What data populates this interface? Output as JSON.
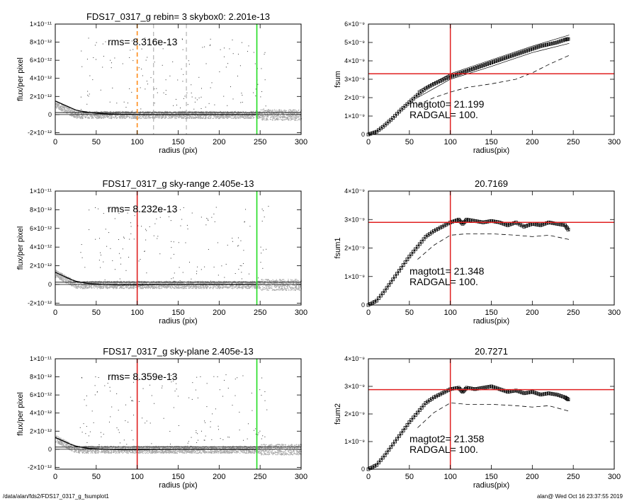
{
  "footer": {
    "path": "/data/alan/fds2/FDS17_0317_g_fsumplot1",
    "stamp": "alan@  Wed Oct 16 23:37:55 2019"
  },
  "colors": {
    "scatter": "#a8a8a8",
    "profile": "#000000",
    "orange": "#ff8c1a",
    "red": "#e02020",
    "green": "#22dd22",
    "dash": "#999999"
  },
  "chart_data": [
    {
      "type": "scatter",
      "title": "FDS17_0317_g rebin= 3    skybox0:  2.201e-13",
      "annotation": "rms= 8.316e-13",
      "xlabel": "radius (pix)",
      "ylabel": "flux/per pixel",
      "xlim": [
        0,
        300
      ],
      "ylim": [
        -2.2e-12,
        1e-11
      ],
      "xticks": [
        "0",
        "50",
        "100",
        "150",
        "200",
        "250",
        "300"
      ],
      "ytick_values": [
        -2e-12,
        0,
        2e-12,
        4e-12,
        6e-12,
        8e-12,
        1e-11
      ],
      "yticks": [
        "-2×10⁻¹²",
        "0",
        "2×10⁻¹²",
        "4×10⁻¹²",
        "6×10⁻¹²",
        "8×10⁻¹²",
        "1×10⁻¹¹"
      ],
      "profile": {
        "x": [
          0,
          5,
          10,
          15,
          20,
          25,
          30,
          40,
          50,
          60,
          70,
          80,
          100,
          120,
          150,
          200,
          245
        ],
        "y": [
          1.5e-12,
          1.3e-12,
          1.1e-12,
          9e-13,
          7e-13,
          5e-13,
          4e-13,
          2.5e-13,
          1.5e-13,
          1e-13,
          6e-14,
          3e-14,
          1e-14,
          0,
          0,
          0,
          0
        ]
      },
      "vlines": [
        {
          "x": 100,
          "color": "orange",
          "style": "dashed"
        },
        {
          "x": 120,
          "color": "dash",
          "style": "dashed"
        },
        {
          "x": 160,
          "color": "dash",
          "style": "dashed"
        },
        {
          "x": 246,
          "color": "green",
          "style": "solid"
        }
      ],
      "hlines": [
        0,
        2.2e-13
      ]
    },
    {
      "type": "line",
      "title": "",
      "annotation": [
        "magtot0=  21.199",
        "RADGAL=    100."
      ],
      "xlabel": "radius(pix)",
      "ylabel": "fsum",
      "xlim": [
        0,
        300
      ],
      "ylim": [
        0,
        6e-09
      ],
      "xticks": [
        "0",
        "50",
        "100",
        "150",
        "200",
        "250",
        "300"
      ],
      "ytick_values": [
        0,
        1e-09,
        2e-09,
        3e-09,
        4e-09,
        5e-09,
        6e-09
      ],
      "yticks": [
        "0",
        "1×10⁻⁹",
        "2×10⁻⁹",
        "3×10⁻⁹",
        "4×10⁻⁹",
        "5×10⁻⁹",
        "6×10⁻⁹"
      ],
      "series": [
        {
          "style": "markers",
          "x": [
            0,
            10,
            20,
            30,
            40,
            50,
            60,
            70,
            80,
            90,
            100,
            110,
            120,
            130,
            140,
            150,
            160,
            170,
            180,
            190,
            200,
            210,
            220,
            230,
            240,
            245
          ],
          "y": [
            0,
            1.5e-10,
            5e-10,
            9e-10,
            1.35e-09,
            1.75e-09,
            2.15e-09,
            2.5e-09,
            2.75e-09,
            2.95e-09,
            3.15e-09,
            3.3e-09,
            3.45e-09,
            3.6e-09,
            3.75e-09,
            3.9e-09,
            4.05e-09,
            4.2e-09,
            4.35e-09,
            4.5e-09,
            4.65e-09,
            4.8e-09,
            4.9e-09,
            5e-09,
            5.15e-09,
            5.2e-09
          ]
        },
        {
          "style": "thin",
          "x": [
            60,
            100,
            150,
            200,
            245
          ],
          "y": [
            2.35e-09,
            3.3e-09,
            4.05e-09,
            4.8e-09,
            5.4e-09
          ]
        },
        {
          "style": "thin",
          "x": [
            60,
            100,
            150,
            200,
            245
          ],
          "y": [
            2e-09,
            3e-09,
            3.7e-09,
            4.45e-09,
            4.95e-09
          ]
        },
        {
          "style": "dashed",
          "x": [
            60,
            80,
            100,
            120,
            150,
            180,
            200,
            220,
            245
          ],
          "y": [
            1.6e-09,
            2e-09,
            2.3e-09,
            2.55e-09,
            2.75e-09,
            3e-09,
            3.35e-09,
            3.8e-09,
            4.3e-09
          ]
        }
      ],
      "vline": 100,
      "hline": 3.3e-09
    },
    {
      "type": "scatter",
      "title": "FDS17_0317_g sky-range  2.405e-13",
      "annotation": "rms= 8.232e-13",
      "xlabel": "radius (pix)",
      "ylabel": "flux/per pixel",
      "xlim": [
        0,
        300
      ],
      "ylim": [
        -2.2e-12,
        1e-11
      ],
      "xticks": [
        "0",
        "50",
        "100",
        "150",
        "200",
        "250",
        "300"
      ],
      "ytick_values": [
        -2e-12,
        0,
        2e-12,
        4e-12,
        6e-12,
        8e-12,
        1e-11
      ],
      "yticks": [
        "-2×10⁻¹²",
        "0",
        "2×10⁻¹²",
        "4×10⁻¹²",
        "6×10⁻¹²",
        "8×10⁻¹²",
        "1×10⁻¹¹"
      ],
      "profile": {
        "x": [
          0,
          5,
          10,
          15,
          20,
          25,
          30,
          40,
          50,
          60,
          70,
          80,
          100,
          120,
          150,
          200,
          245
        ],
        "y": [
          1.3e-12,
          1.1e-12,
          9e-13,
          7e-13,
          5e-13,
          3.5e-13,
          2.5e-13,
          1e-13,
          5e-14,
          0,
          -3e-14,
          -5e-14,
          -5e-14,
          -3e-14,
          0,
          0,
          0
        ]
      },
      "vlines": [
        {
          "x": 100,
          "color": "red",
          "style": "solid"
        },
        {
          "x": 246,
          "color": "green",
          "style": "solid"
        }
      ],
      "hlines": [
        0,
        2.4e-13
      ]
    },
    {
      "type": "line",
      "title": "20.7169",
      "annotation": [
        "magtot1=  21.348",
        "RADGAL=    100."
      ],
      "xlabel": "radius(pix)",
      "ylabel": "fsum1",
      "xlim": [
        0,
        300
      ],
      "ylim": [
        0,
        4e-09
      ],
      "xticks": [
        "0",
        "50",
        "100",
        "150",
        "200",
        "250",
        "300"
      ],
      "ytick_values": [
        0,
        1e-09,
        2e-09,
        3e-09,
        4e-09
      ],
      "yticks": [
        "0",
        "1×10⁻⁹",
        "2×10⁻⁹",
        "3×10⁻⁹",
        "4×10⁻⁹"
      ],
      "series": [
        {
          "style": "markers",
          "x": [
            0,
            10,
            20,
            30,
            40,
            50,
            60,
            70,
            80,
            90,
            100,
            110,
            115,
            120,
            130,
            140,
            150,
            160,
            170,
            180,
            190,
            200,
            210,
            220,
            230,
            240,
            245
          ],
          "y": [
            0,
            1.5e-10,
            5e-10,
            9e-10,
            1.3e-09,
            1.7e-09,
            2.05e-09,
            2.4e-09,
            2.6e-09,
            2.75e-09,
            2.9e-09,
            3e-09,
            2.85e-09,
            3e-09,
            2.95e-09,
            2.9e-09,
            2.95e-09,
            2.9e-09,
            2.8e-09,
            2.9e-09,
            2.75e-09,
            2.85e-09,
            2.8e-09,
            2.9e-09,
            2.85e-09,
            2.8e-09,
            2.6e-09
          ]
        },
        {
          "style": "dashed",
          "x": [
            60,
            80,
            100,
            120,
            150,
            180,
            200,
            220,
            245
          ],
          "y": [
            1.6e-09,
            2.1e-09,
            2.45e-09,
            2.5e-09,
            2.5e-09,
            2.45e-09,
            2.4e-09,
            2.45e-09,
            2.3e-09
          ]
        }
      ],
      "vline": 100,
      "hline": 2.9e-09
    },
    {
      "type": "scatter",
      "title": "FDS17_0317_g sky-plane  2.405e-13",
      "annotation": "rms= 8.359e-13",
      "xlabel": "radius (pix)",
      "ylabel": "flux/per pixel",
      "xlim": [
        0,
        300
      ],
      "ylim": [
        -2.2e-12,
        1e-11
      ],
      "xticks": [
        "0",
        "50",
        "100",
        "150",
        "200",
        "250",
        "300"
      ],
      "ytick_values": [
        -2e-12,
        0,
        2e-12,
        4e-12,
        6e-12,
        8e-12,
        1e-11
      ],
      "yticks": [
        "-2×10⁻¹²",
        "0",
        "2×10⁻¹²",
        "4×10⁻¹²",
        "6×10⁻¹²",
        "8×10⁻¹²",
        "1×10⁻¹¹"
      ],
      "profile": {
        "x": [
          0,
          5,
          10,
          15,
          20,
          25,
          30,
          40,
          50,
          60,
          70,
          80,
          100,
          120,
          150,
          200,
          245
        ],
        "y": [
          1.3e-12,
          1.1e-12,
          9e-13,
          7e-13,
          5e-13,
          3.5e-13,
          2.5e-13,
          1e-13,
          5e-14,
          0,
          -3e-14,
          -5e-14,
          -5e-14,
          -3e-14,
          0,
          0,
          0
        ]
      },
      "vlines": [
        {
          "x": 100,
          "color": "red",
          "style": "solid"
        },
        {
          "x": 246,
          "color": "green",
          "style": "solid"
        }
      ],
      "hlines": [
        0,
        2.4e-13
      ]
    },
    {
      "type": "line",
      "title": "20.7271",
      "annotation": [
        "magtot2=  21.358",
        "RADGAL=    100."
      ],
      "xlabel": "radius(pix)",
      "ylabel": "fsum2",
      "xlim": [
        0,
        300
      ],
      "ylim": [
        0,
        4e-09
      ],
      "xticks": [
        "0",
        "50",
        "100",
        "150",
        "200",
        "250",
        "300"
      ],
      "ytick_values": [
        0,
        1e-09,
        2e-09,
        3e-09,
        4e-09
      ],
      "yticks": [
        "0",
        "1×10⁻⁹",
        "2×10⁻⁹",
        "3×10⁻⁹",
        "4×10⁻⁹"
      ],
      "series": [
        {
          "style": "markers",
          "x": [
            0,
            10,
            20,
            30,
            40,
            50,
            60,
            70,
            80,
            90,
            100,
            110,
            115,
            120,
            130,
            140,
            150,
            160,
            170,
            180,
            190,
            200,
            210,
            220,
            230,
            240,
            245
          ],
          "y": [
            0,
            1.5e-10,
            5e-10,
            9e-10,
            1.3e-09,
            1.7e-09,
            2.05e-09,
            2.4e-09,
            2.6e-09,
            2.75e-09,
            2.9e-09,
            2.95e-09,
            2.8e-09,
            2.95e-09,
            2.9e-09,
            2.95e-09,
            3e-09,
            2.9e-09,
            2.8e-09,
            2.85e-09,
            2.75e-09,
            2.8e-09,
            2.7e-09,
            2.75e-09,
            2.7e-09,
            2.6e-09,
            2.5e-09
          ]
        },
        {
          "style": "dashed",
          "x": [
            60,
            80,
            100,
            120,
            150,
            180,
            200,
            220,
            245
          ],
          "y": [
            1.5e-09,
            2.05e-09,
            2.4e-09,
            2.35e-09,
            2.35e-09,
            2.3e-09,
            2.25e-09,
            2.3e-09,
            2.1e-09
          ]
        }
      ],
      "vline": 100,
      "hline": 2.88e-09
    }
  ]
}
